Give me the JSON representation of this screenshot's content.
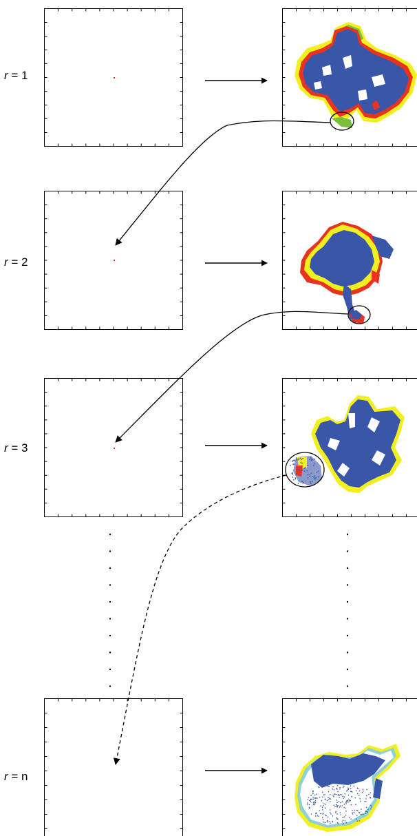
{
  "rows": [
    {
      "label_var": "r",
      "label_eq": " = 1"
    },
    {
      "label_var": "r",
      "label_eq": " = 2"
    },
    {
      "label_var": "r",
      "label_eq": " = 3"
    },
    {
      "label_var": "r",
      "label_eq": " = n"
    }
  ],
  "colors": {
    "blue": "#3a56a8",
    "red": "#e8331f",
    "yellow": "#f2ef1f",
    "green": "#79bf3a",
    "cyan": "#8fd0d8"
  }
}
